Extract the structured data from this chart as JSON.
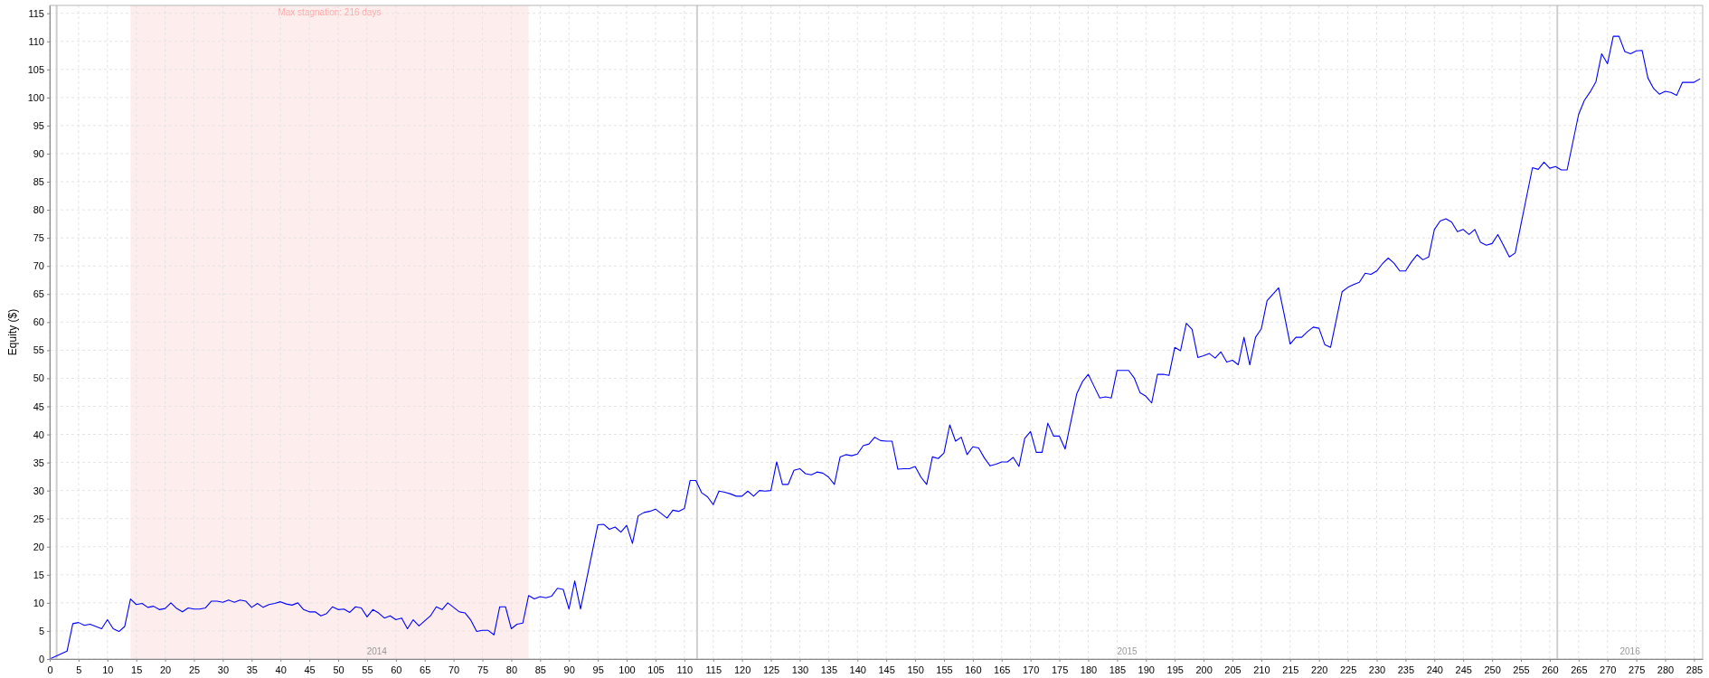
{
  "chart_data": {
    "type": "line",
    "ylabel": "Equity ($)",
    "x": [
      0,
      3,
      4,
      5,
      6,
      7,
      9,
      10,
      11,
      12,
      13,
      14,
      15,
      16,
      17,
      18,
      19,
      20,
      21,
      22,
      23,
      24,
      25,
      26,
      27,
      28,
      29,
      30,
      31,
      32,
      33,
      34,
      35,
      36,
      37,
      38,
      39,
      40,
      41,
      42,
      43,
      44,
      45,
      46,
      47,
      48,
      49,
      50,
      51,
      52,
      53,
      54,
      55,
      56,
      57,
      58,
      59,
      60,
      61,
      62,
      63,
      64,
      66,
      67,
      68,
      69,
      70,
      71,
      72,
      73,
      74,
      75,
      76,
      77,
      78,
      79,
      80,
      81,
      82,
      83,
      84,
      85,
      86,
      87,
      88,
      89,
      90,
      91,
      92,
      95,
      96,
      97,
      98,
      99,
      100,
      101,
      102,
      103,
      104,
      105,
      106,
      107,
      108,
      109,
      110,
      111,
      112,
      113,
      114,
      115,
      116,
      117,
      118,
      119,
      120,
      121,
      122,
      123,
      124,
      125,
      126,
      127,
      128,
      129,
      130,
      131,
      132,
      133,
      134,
      135,
      136,
      137,
      138,
      139,
      140,
      141,
      142,
      143,
      144,
      145,
      146,
      147,
      148,
      149,
      150,
      151,
      152,
      153,
      154,
      155,
      156,
      157,
      158,
      159,
      160,
      161,
      162,
      163,
      164,
      165,
      166,
      167,
      168,
      169,
      170,
      171,
      172,
      173,
      174,
      175,
      176,
      178,
      179,
      180,
      181,
      182,
      183,
      184,
      185,
      187,
      188,
      189,
      190,
      191,
      192,
      193,
      194,
      195,
      196,
      197,
      198,
      199,
      200,
      201,
      202,
      203,
      204,
      205,
      206,
      207,
      208,
      209,
      210,
      211,
      213,
      214,
      215,
      216,
      217,
      218,
      219,
      220,
      221,
      222,
      224,
      225,
      226,
      227,
      228,
      229,
      230,
      231,
      232,
      233,
      234,
      235,
      236,
      237,
      238,
      239,
      240,
      241,
      242,
      243,
      244,
      245,
      246,
      247,
      248,
      249,
      250,
      251,
      252,
      253,
      254,
      257,
      258,
      259,
      260,
      261,
      262,
      263,
      265,
      266,
      267,
      268,
      269,
      270,
      271,
      272,
      273,
      274,
      275,
      276,
      277,
      278,
      279,
      280,
      281,
      282,
      283,
      285,
      286
    ],
    "series": [
      {
        "color": "#0000ff",
        "values": [
          0,
          1.4,
          6.3,
          6.5,
          6.0,
          6.2,
          5.4,
          7.0,
          5.4,
          4.9,
          5.8,
          10.7,
          9.7,
          9.9,
          9.2,
          9.4,
          8.8,
          9.0,
          10.0,
          9.0,
          8.4,
          9.1,
          8.9,
          8.9,
          9.1,
          10.3,
          10.3,
          10.1,
          10.5,
          10.1,
          10.5,
          10.3,
          9.2,
          9.9,
          9.2,
          9.7,
          9.9,
          10.2,
          9.8,
          9.6,
          10.0,
          8.8,
          8.4,
          8.4,
          7.7,
          8.1,
          9.3,
          8.8,
          8.9,
          8.3,
          9.3,
          9.1,
          7.5,
          8.8,
          8.2,
          7.3,
          7.7,
          7.0,
          7.3,
          5.4,
          7.0,
          5.9,
          7.7,
          9.3,
          8.8,
          10.0,
          9.2,
          8.4,
          8.2,
          6.9,
          4.9,
          5.1,
          5.1,
          4.3,
          9.3,
          9.3,
          5.4,
          6.2,
          6.4,
          11.3,
          10.7,
          11.1,
          10.9,
          11.2,
          12.6,
          12.4,
          8.9,
          13.9,
          8.9,
          23.9,
          24.0,
          23.1,
          23.5,
          22.6,
          23.8,
          20.6,
          25.5,
          26.1,
          26.3,
          26.7,
          25.9,
          25.1,
          26.5,
          26.3,
          26.8,
          31.8,
          31.8,
          29.6,
          28.9,
          27.5,
          29.9,
          29.7,
          29.4,
          29.0,
          29.0,
          29.9,
          29.0,
          30.0,
          29.9,
          30.0,
          35.1,
          31.1,
          31.1,
          33.6,
          33.9,
          33.0,
          32.8,
          33.3,
          33.1,
          32.4,
          31.1,
          36.0,
          36.4,
          36.2,
          36.5,
          38.0,
          38.3,
          39.5,
          38.9,
          38.8,
          38.8,
          33.8,
          33.9,
          33.9,
          34.3,
          32.4,
          31.1,
          36.0,
          35.7,
          36.7,
          41.7,
          38.8,
          39.5,
          36.4,
          37.8,
          37.6,
          35.8,
          34.4,
          34.7,
          35.1,
          35.1,
          35.9,
          34.3,
          39.3,
          40.5,
          36.8,
          36.8,
          42.0,
          39.7,
          39.7,
          37.4,
          47.2,
          49.4,
          50.7,
          48.6,
          46.5,
          46.7,
          46.5,
          51.4,
          51.4,
          50.0,
          47.4,
          46.8,
          45.6,
          50.7,
          50.7,
          50.5,
          55.5,
          54.9,
          59.8,
          58.7,
          53.7,
          54.0,
          54.4,
          53.6,
          54.7,
          52.9,
          53.2,
          52.4,
          57.3,
          52.4,
          57.3,
          58.8,
          63.8,
          66.1,
          61.2,
          56.1,
          57.3,
          57.3,
          58.3,
          59.1,
          58.9,
          56.0,
          55.5,
          65.4,
          66.2,
          66.7,
          67.1,
          68.7,
          68.5,
          69.1,
          70.4,
          71.4,
          70.5,
          69.1,
          69.1,
          70.7,
          72.0,
          71.1,
          71.6,
          76.5,
          78.0,
          78.4,
          77.8,
          76.1,
          76.5,
          75.6,
          76.5,
          74.2,
          73.7,
          74.0,
          75.6,
          73.6,
          71.6,
          72.3,
          87.5,
          87.2,
          88.5,
          87.4,
          87.7,
          87.1,
          87.1,
          97.0,
          99.5,
          101.0,
          102.8,
          107.8,
          106.0,
          110.9,
          110.9,
          108.2,
          107.8,
          108.3,
          108.4,
          103.5,
          101.6,
          100.6,
          101.1,
          100.9,
          100.4,
          102.7,
          102.7,
          103.3
        ]
      }
    ],
    "xlim": [
      0,
      286.5
    ],
    "ylim": [
      0,
      116.4
    ],
    "xticks": [
      0,
      5,
      10,
      15,
      20,
      25,
      30,
      35,
      40,
      45,
      50,
      55,
      60,
      65,
      70,
      75,
      80,
      85,
      90,
      95,
      100,
      105,
      110,
      115,
      120,
      125,
      130,
      135,
      140,
      145,
      150,
      155,
      160,
      165,
      170,
      175,
      180,
      185,
      190,
      195,
      200,
      205,
      210,
      215,
      220,
      225,
      230,
      235,
      240,
      245,
      250,
      255,
      260,
      265,
      270,
      275,
      280,
      285
    ],
    "yticks": [
      0,
      5,
      10,
      15,
      20,
      25,
      30,
      35,
      40,
      45,
      50,
      55,
      60,
      65,
      70,
      75,
      80,
      85,
      90,
      95,
      100,
      105,
      110,
      115
    ],
    "grid": true,
    "bands": [
      {
        "axis": "x",
        "from": 14,
        "to": 83,
        "label": "Max stagnation: 216 days",
        "color": "#fdeded"
      }
    ],
    "ref_lines": [
      {
        "axis": "x",
        "value": 1.2,
        "color": "#cfcfcf"
      },
      {
        "axis": "x",
        "value": 112.2,
        "color": "#cfcfcf"
      },
      {
        "axis": "x",
        "value": 261.3,
        "color": "#cfcfcf"
      }
    ],
    "annotations": [
      "2014",
      "2015",
      "2016"
    ]
  }
}
